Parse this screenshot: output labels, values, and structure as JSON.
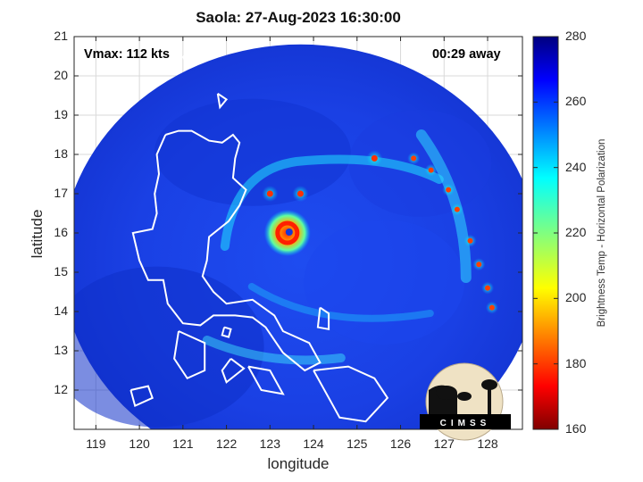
{
  "title": "Saola: 27-Aug-2023 16:30:00",
  "vmax_label": "Vmax: 112 kts",
  "time_away_label": "00:29 away",
  "logo_text": "CIMSS",
  "colors": {
    "background_field": "#1a3fe0",
    "storm_core": "#ff2000",
    "coastline": "#ffffff",
    "frame": "#262626"
  },
  "chart_data": {
    "type": "heatmap",
    "title": "Saola: 27-Aug-2023 16:30:00",
    "xlabel": "longitude",
    "ylabel": "latitude",
    "xlim": [
      118.5,
      128.8
    ],
    "ylim": [
      11.0,
      21.0
    ],
    "x_ticks": [
      119,
      120,
      121,
      122,
      123,
      124,
      125,
      126,
      127,
      128
    ],
    "y_ticks": [
      12,
      13,
      14,
      15,
      16,
      17,
      18,
      19,
      20,
      21
    ],
    "grid": true,
    "colorbar": {
      "label": "Brightness Temp - Horizontal Polarization",
      "min": 160,
      "max": 280,
      "ticks": [
        160,
        180,
        200,
        220,
        240,
        260,
        280
      ],
      "colormap": "jet"
    },
    "storm_center": {
      "lon": 123.4,
      "lat": 16.0
    },
    "scan_center": {
      "lon": 123.7,
      "lat": 15.3
    },
    "scan_radius_deg": 5.5
  }
}
